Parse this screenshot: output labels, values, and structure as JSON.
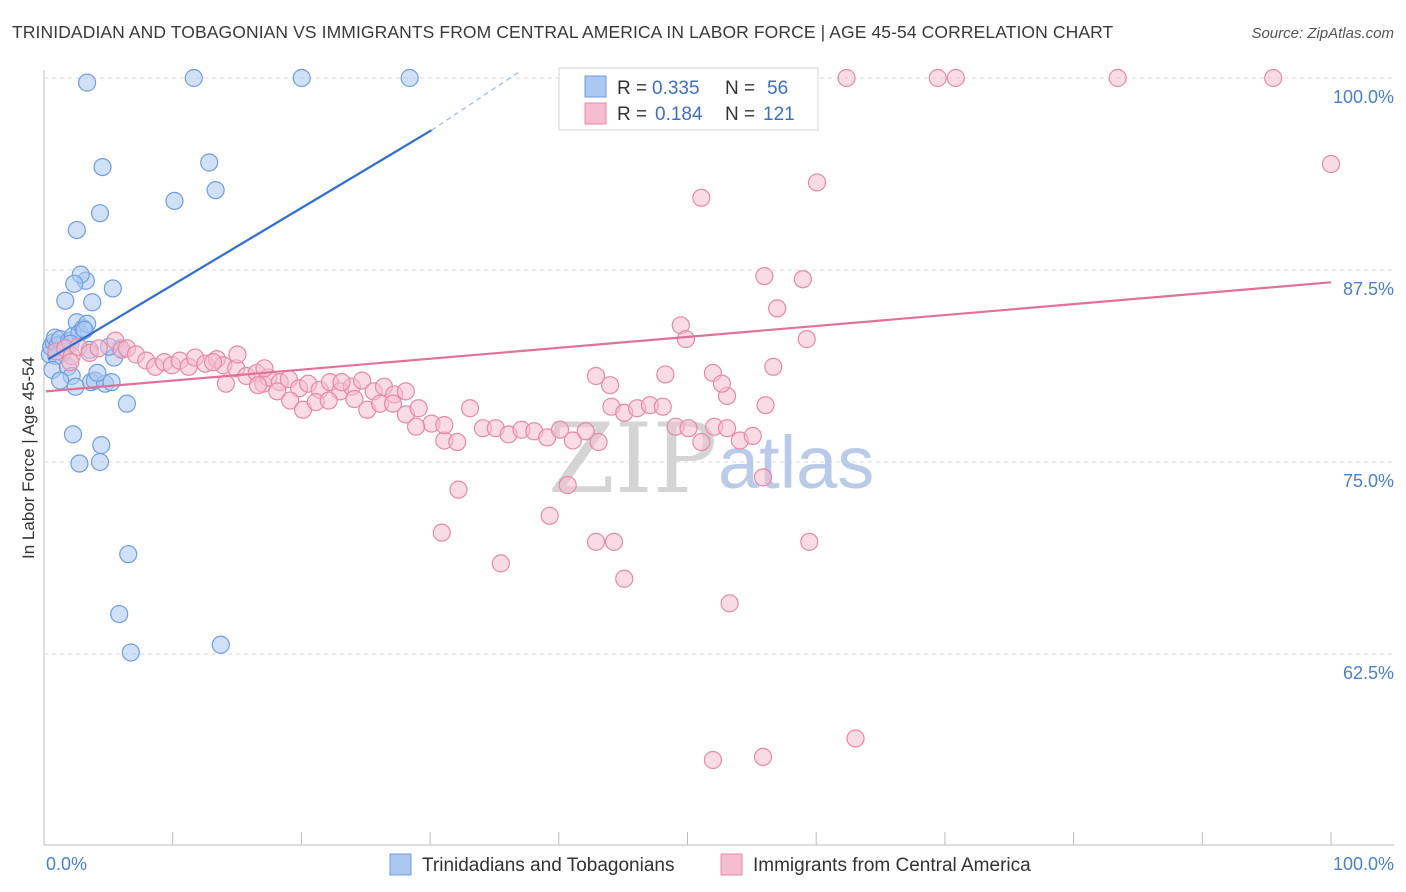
{
  "header": {
    "title": "TRINIDADIAN AND TOBAGONIAN VS IMMIGRANTS FROM CENTRAL AMERICA IN LABOR FORCE | AGE 45-54 CORRELATION CHART",
    "source": "Source: ZipAtlas.com"
  },
  "watermark": {
    "zip": "ZIP",
    "atlas": "atlas"
  },
  "legend_box": {
    "r_label": "R =",
    "n_label": "N =",
    "rows": [
      {
        "r": "0.335",
        "n": "56"
      },
      {
        "r": "0.184",
        "n": "121"
      }
    ]
  },
  "chart_data": {
    "type": "scatter",
    "title": "TRINIDADIAN AND TOBAGONIAN VS IMMIGRANTS FROM CENTRAL AMERICA IN LABOR FORCE | AGE 45-54 CORRELATION CHART",
    "xlabel": "",
    "ylabel": "In Labor Force | Age 45-54",
    "xlim": [
      0,
      100
    ],
    "ylim": [
      51,
      101
    ],
    "x_tick_labels": [
      "0.0%",
      "100.0%"
    ],
    "y_ticks": [
      62.5,
      75.0,
      87.5,
      100.0
    ],
    "y_tick_labels": [
      "62.5%",
      "75.0%",
      "87.5%",
      "100.0%"
    ],
    "grid": true,
    "legend_position": "top-center",
    "series": [
      {
        "name": "Trinidadians and Tobagonians",
        "color": "#6f9ee0",
        "fill": "#aac8f0",
        "r": 0.335,
        "n": 56,
        "trend": {
          "x0": 0.2,
          "y0": 81.7,
          "x1": 30,
          "y1": 96.6,
          "dash_to_x": 37,
          "dash_to_y": 100.5
        },
        "points": [
          [
            0.3,
            82.0
          ],
          [
            0.4,
            82.5
          ],
          [
            0.6,
            82.8
          ],
          [
            0.7,
            83.1
          ],
          [
            0.9,
            82.6
          ],
          [
            1.1,
            83.0
          ],
          [
            1.3,
            82.1
          ],
          [
            1.5,
            82.4
          ],
          [
            0.8,
            81.9
          ],
          [
            1.8,
            82.9
          ],
          [
            2.1,
            83.2
          ],
          [
            2.4,
            84.1
          ],
          [
            2.6,
            83.4
          ],
          [
            2.9,
            83.7
          ],
          [
            3.2,
            84.0
          ],
          [
            3.4,
            82.3
          ],
          [
            3.6,
            85.4
          ],
          [
            3.1,
            86.8
          ],
          [
            2.7,
            87.2
          ],
          [
            2.2,
            86.6
          ],
          [
            1.5,
            85.5
          ],
          [
            0.5,
            81.0
          ],
          [
            1.7,
            81.2
          ],
          [
            2.0,
            80.6
          ],
          [
            1.1,
            80.3
          ],
          [
            3.5,
            80.2
          ],
          [
            3.8,
            80.3
          ],
          [
            4.6,
            80.1
          ],
          [
            5.1,
            80.2
          ],
          [
            2.3,
            79.9
          ],
          [
            6.3,
            78.8
          ],
          [
            2.1,
            76.8
          ],
          [
            4.3,
            76.1
          ],
          [
            4.2,
            75.0
          ],
          [
            2.6,
            74.9
          ],
          [
            5.3,
            81.8
          ],
          [
            5.8,
            82.4
          ],
          [
            4.9,
            82.5
          ],
          [
            5.2,
            86.3
          ],
          [
            2.4,
            90.1
          ],
          [
            4.2,
            91.2
          ],
          [
            4.4,
            94.2
          ],
          [
            10.0,
            92.0
          ],
          [
            12.7,
            94.5
          ],
          [
            13.2,
            92.7
          ],
          [
            3.2,
            99.7
          ],
          [
            11.5,
            100.0
          ],
          [
            19.9,
            100.0
          ],
          [
            28.3,
            100.0
          ],
          [
            6.4,
            69.0
          ],
          [
            5.7,
            65.1
          ],
          [
            6.6,
            62.6
          ],
          [
            13.6,
            63.1
          ],
          [
            4.0,
            80.8
          ],
          [
            3.0,
            83.6
          ],
          [
            1.9,
            82.7
          ]
        ]
      },
      {
        "name": "Immigrants from Central America",
        "color": "#e889a6",
        "fill": "#f4bdd0",
        "r": 0.184,
        "n": 121,
        "trend": {
          "x0": 0,
          "y0": 79.6,
          "x1": 100,
          "y1": 86.7
        },
        "points": [
          [
            0.8,
            82.2
          ],
          [
            1.5,
            82.4
          ],
          [
            2.0,
            81.9
          ],
          [
            2.5,
            82.5
          ],
          [
            3.4,
            82.1
          ],
          [
            4.1,
            82.4
          ],
          [
            5.4,
            82.9
          ],
          [
            5.9,
            82.3
          ],
          [
            6.3,
            82.4
          ],
          [
            7.0,
            82.0
          ],
          [
            7.8,
            81.6
          ],
          [
            8.5,
            81.2
          ],
          [
            9.2,
            81.5
          ],
          [
            9.8,
            81.3
          ],
          [
            10.4,
            81.6
          ],
          [
            11.1,
            81.2
          ],
          [
            11.6,
            81.8
          ],
          [
            12.4,
            81.4
          ],
          [
            13.3,
            81.7
          ],
          [
            13.8,
            81.3
          ],
          [
            14.8,
            81.1
          ],
          [
            15.6,
            80.6
          ],
          [
            16.4,
            80.8
          ],
          [
            16.9,
            80.1
          ],
          [
            17.3,
            80.5
          ],
          [
            18.2,
            80.2
          ],
          [
            18.9,
            80.4
          ],
          [
            19.7,
            79.8
          ],
          [
            20.4,
            80.1
          ],
          [
            21.3,
            79.7
          ],
          [
            22.1,
            80.2
          ],
          [
            22.9,
            79.6
          ],
          [
            23.8,
            79.9
          ],
          [
            24.6,
            80.3
          ],
          [
            25.5,
            79.6
          ],
          [
            26.3,
            79.9
          ],
          [
            27.1,
            79.4
          ],
          [
            28.0,
            79.6
          ],
          [
            14.0,
            80.1
          ],
          [
            13.0,
            81.5
          ],
          [
            14.9,
            82.0
          ],
          [
            16.5,
            80.0
          ],
          [
            17.0,
            81.1
          ],
          [
            18.0,
            79.6
          ],
          [
            19.0,
            79.0
          ],
          [
            20.0,
            78.4
          ],
          [
            21.0,
            78.9
          ],
          [
            22.0,
            79.0
          ],
          [
            23.0,
            80.2
          ],
          [
            24.0,
            79.1
          ],
          [
            25.0,
            78.4
          ],
          [
            26.0,
            78.8
          ],
          [
            27.0,
            78.8
          ],
          [
            28.0,
            78.1
          ],
          [
            29.0,
            78.5
          ],
          [
            30.0,
            77.5
          ],
          [
            31.0,
            76.4
          ],
          [
            32.0,
            76.3
          ],
          [
            33.0,
            78.5
          ],
          [
            34.0,
            77.2
          ],
          [
            35.0,
            77.2
          ],
          [
            36.0,
            76.8
          ],
          [
            37.0,
            77.1
          ],
          [
            38.0,
            77.0
          ],
          [
            39.0,
            76.6
          ],
          [
            40.0,
            77.1
          ],
          [
            41.0,
            76.4
          ],
          [
            42.0,
            77.0
          ],
          [
            43.0,
            76.3
          ],
          [
            44.0,
            78.6
          ],
          [
            45.0,
            78.2
          ],
          [
            46.0,
            78.5
          ],
          [
            47.0,
            78.7
          ],
          [
            48.0,
            78.6
          ],
          [
            49.0,
            77.3
          ],
          [
            50.0,
            77.2
          ],
          [
            51.0,
            76.3
          ],
          [
            52.0,
            77.3
          ],
          [
            53.0,
            77.2
          ],
          [
            54.0,
            76.4
          ],
          [
            55.0,
            76.7
          ],
          [
            56.0,
            78.7
          ],
          [
            28.8,
            77.3
          ],
          [
            31.0,
            77.4
          ],
          [
            32.1,
            73.2
          ],
          [
            30.8,
            70.4
          ],
          [
            35.4,
            68.4
          ],
          [
            39.2,
            71.5
          ],
          [
            40.6,
            73.5
          ],
          [
            42.8,
            69.8
          ],
          [
            44.2,
            69.8
          ],
          [
            45.0,
            67.4
          ],
          [
            51.9,
            80.8
          ],
          [
            53.0,
            79.3
          ],
          [
            52.6,
            80.1
          ],
          [
            56.6,
            81.2
          ],
          [
            55.8,
            74.0
          ],
          [
            59.4,
            69.8
          ],
          [
            55.9,
            87.1
          ],
          [
            58.9,
            86.9
          ],
          [
            56.9,
            85.0
          ],
          [
            59.2,
            83.0
          ],
          [
            48.2,
            80.7
          ],
          [
            49.4,
            83.9
          ],
          [
            49.8,
            83.0
          ],
          [
            42.8,
            80.6
          ],
          [
            43.9,
            80.0
          ],
          [
            51.0,
            92.2
          ],
          [
            60.0,
            93.2
          ],
          [
            63.0,
            57.0
          ],
          [
            55.8,
            55.8
          ],
          [
            51.9,
            55.6
          ],
          [
            53.2,
            65.8
          ],
          [
            59.1,
            99.9
          ],
          [
            62.3,
            100.0
          ],
          [
            69.4,
            100.0
          ],
          [
            70.8,
            100.0
          ],
          [
            83.4,
            100.0
          ],
          [
            95.5,
            100.0
          ],
          [
            100.0,
            94.4
          ],
          [
            1.9,
            81.5
          ]
        ]
      }
    ]
  },
  "bottom_legend": [
    {
      "label": "Trinidadians and Tobagonians"
    },
    {
      "label": "Immigrants from Central America"
    }
  ]
}
